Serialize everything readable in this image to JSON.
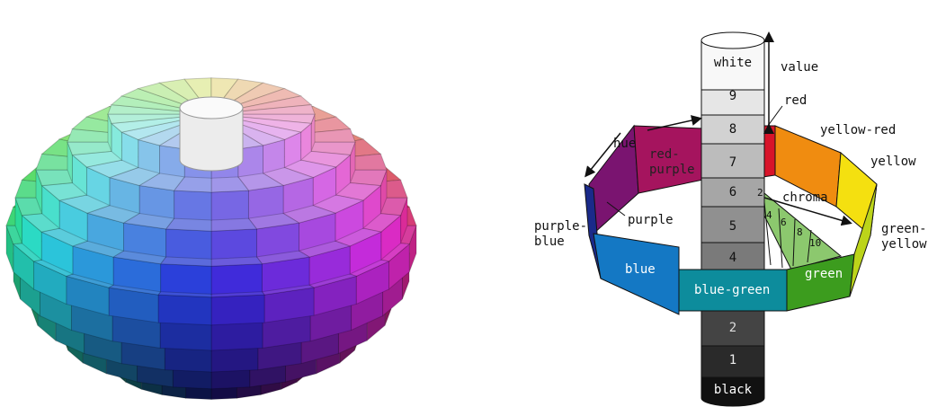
{
  "munsell": {
    "value_scale": [
      "white",
      "9",
      "8",
      "7",
      "6",
      "5",
      "4",
      "2",
      "1",
      "black"
    ],
    "hues": [
      [
        "red"
      ],
      [
        "yellow-red"
      ],
      [
        "yellow"
      ],
      [
        "green-",
        "yellow"
      ],
      [
        "green"
      ],
      [
        "blue-green"
      ],
      [
        "blue"
      ],
      [
        "purple-",
        "blue"
      ],
      [
        "purple"
      ],
      [
        "red-",
        "purple"
      ]
    ],
    "axis_labels": {
      "value": "value",
      "hue": "hue",
      "chroma": "chroma"
    },
    "chroma_steps": [
      "2",
      "4",
      "6",
      "8",
      "10"
    ]
  }
}
